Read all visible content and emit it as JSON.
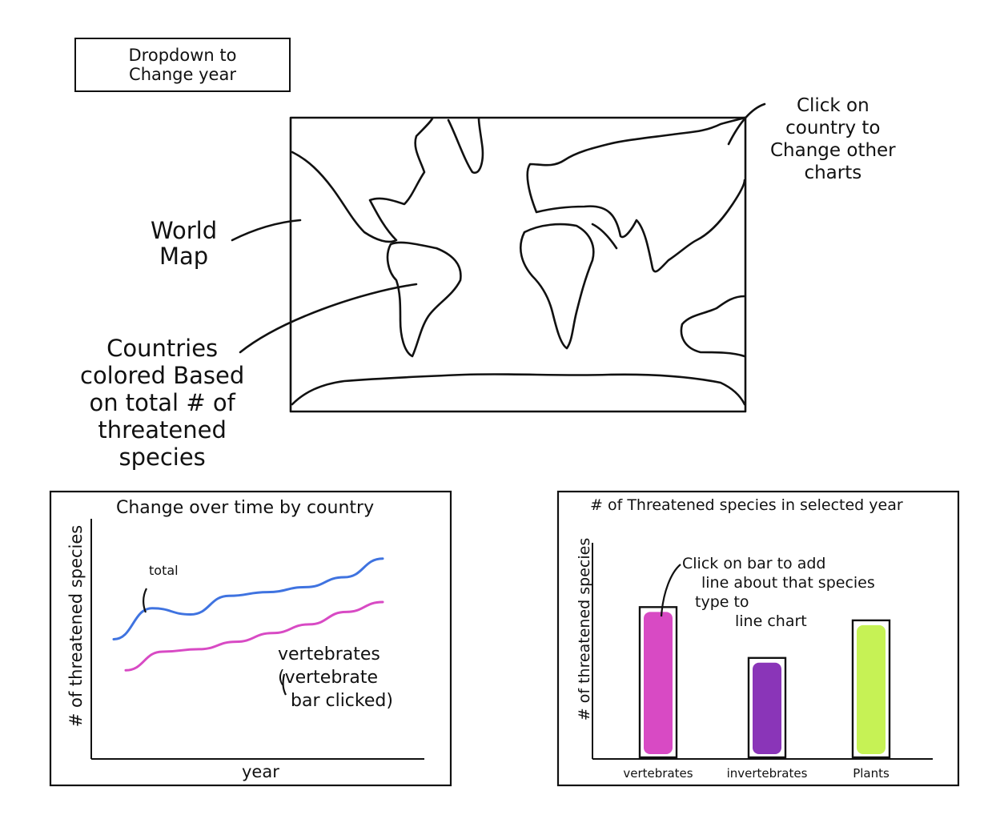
{
  "dropdown": {
    "line1": "Dropdown to",
    "line2": "Change year"
  },
  "map": {
    "label_line1": "World",
    "label_line2": "Map",
    "click_note": [
      "Click on",
      "country to",
      "Change other",
      "charts"
    ],
    "countries_note": [
      "Countries",
      "colored Based",
      "on total # of",
      "threatened",
      "species"
    ]
  },
  "line_chart_panel": {
    "title": "Change over time by country",
    "ylabel": "# of threatened species",
    "xlabel": "year",
    "total_label": "total",
    "vertebrates_note": [
      "vertebrates",
      "(vertebrate",
      "bar clicked)"
    ]
  },
  "bar_chart_panel": {
    "title": "# of Threatened species in selected year",
    "ylabel": "# of threatened species",
    "click_note": [
      "Click on bar to add",
      "line about that species",
      "type to",
      "line chart"
    ]
  },
  "colors": {
    "total": "#3f73e0",
    "vertebrates": "#d84ac4",
    "invertebrates": "#8a35b8",
    "plants": "#c6f255",
    "ink": "#111111"
  },
  "chart_data": [
    {
      "type": "line",
      "title": "Change over time by country",
      "xlabel": "year",
      "ylabel": "# of threatened species",
      "series": [
        {
          "name": "total",
          "values": [
            30,
            55,
            50,
            65,
            68,
            72,
            80,
            95
          ]
        },
        {
          "name": "vertebrates",
          "values": [
            5,
            20,
            22,
            28,
            35,
            42,
            52,
            60
          ]
        }
      ]
    },
    {
      "type": "bar",
      "title": "# of Threatened species in selected year",
      "ylabel": "# of threatened species",
      "categories": [
        "vertebrates",
        "invertebrates",
        "Plants"
      ],
      "values": [
        68,
        45,
        62
      ]
    }
  ]
}
